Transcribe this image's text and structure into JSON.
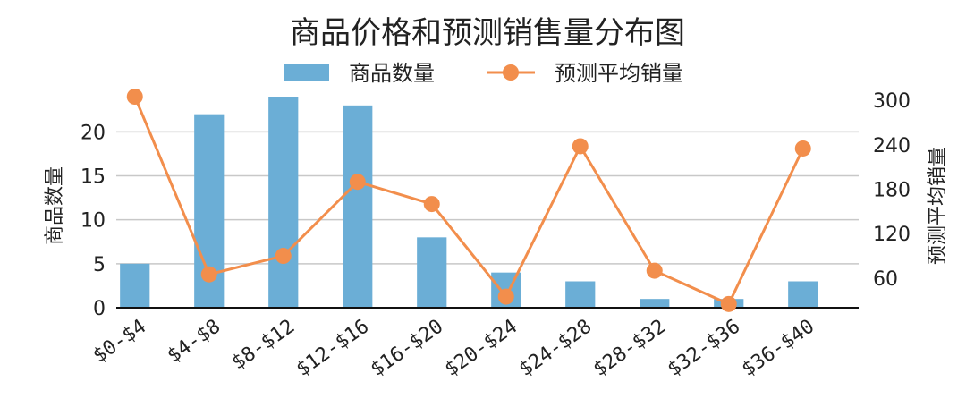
{
  "chart_data": {
    "type": "bar",
    "title": "商品价格和预测销售量分布图",
    "categories": [
      "$0-$4",
      "$4-$8",
      "$8-$12",
      "$12-$16",
      "$16-$20",
      "$20-$24",
      "$24-$28",
      "$28-$32",
      "$32-$36",
      "$36-$40"
    ],
    "series": [
      {
        "name": "商品数量",
        "type": "bar",
        "axis": "left",
        "color": "#6baed6",
        "values": [
          5,
          22,
          24,
          23,
          8,
          4,
          3,
          1,
          1,
          3
        ]
      },
      {
        "name": "预测平均销量",
        "type": "line",
        "axis": "right",
        "color": "#f28e4c",
        "values": [
          305,
          65,
          90,
          190,
          160,
          35,
          238,
          70,
          25,
          235
        ]
      }
    ],
    "ylabel_left": "商品数量",
    "ylabel_right": "预测平均销量",
    "ylim_left": [
      0,
      24
    ],
    "yticks_left": [
      0,
      5,
      10,
      15,
      20
    ],
    "ylim_right": [
      20,
      305
    ],
    "yticks_right": [
      60,
      120,
      180,
      240,
      300
    ],
    "grid": true,
    "legend": "top-center"
  }
}
